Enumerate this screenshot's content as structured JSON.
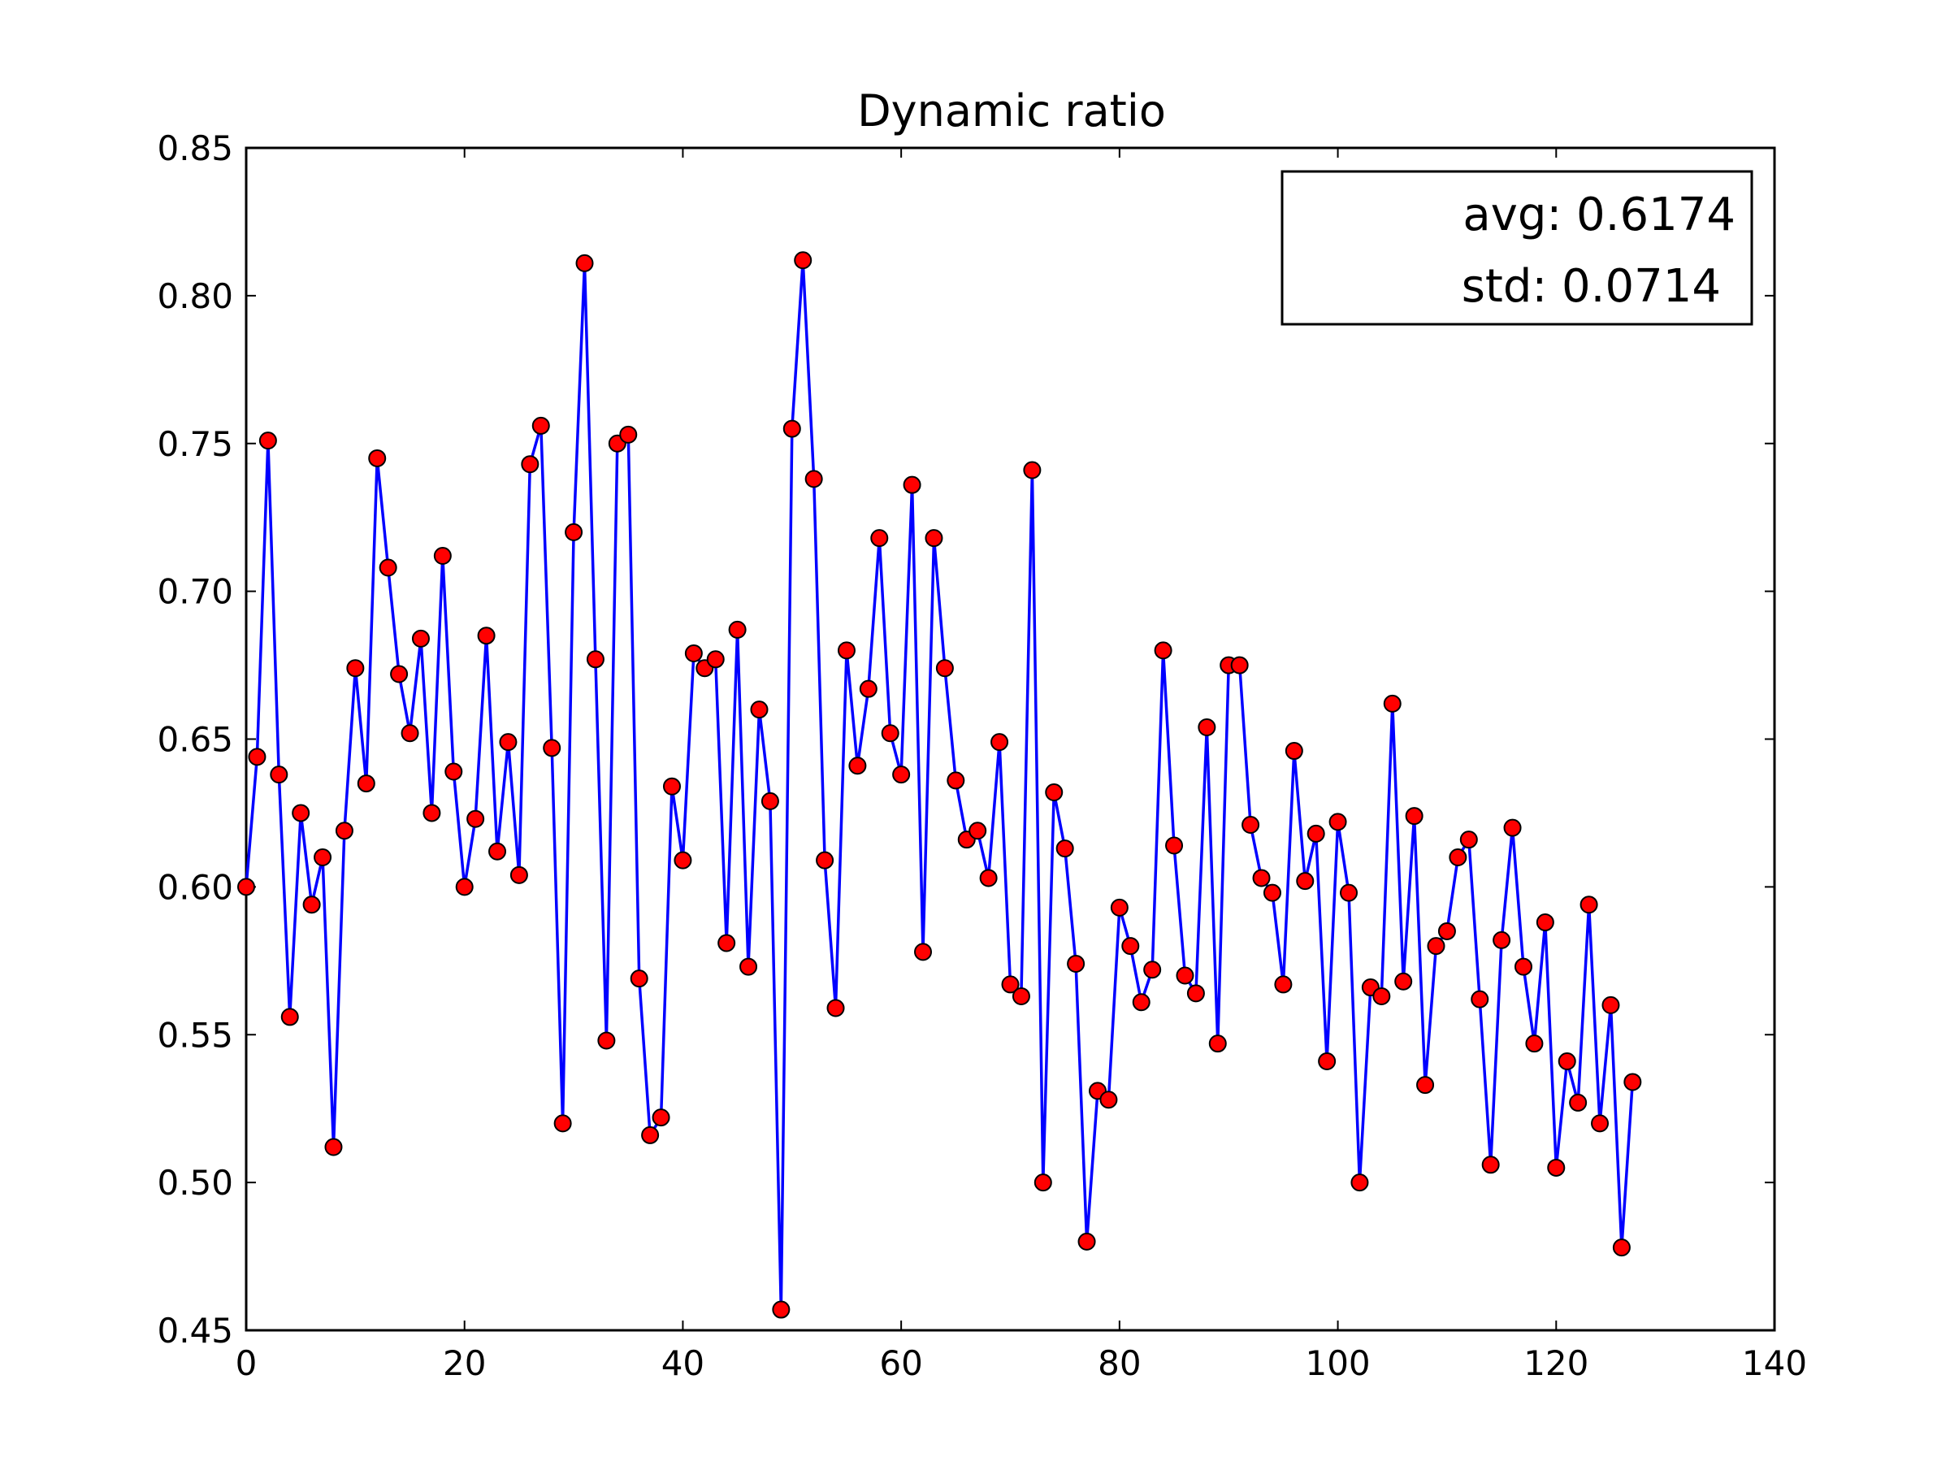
{
  "chart_data": {
    "type": "line",
    "title": "Dynamic ratio",
    "xlabel": "",
    "ylabel": "",
    "xlim": [
      0,
      140
    ],
    "ylim": [
      0.45,
      0.85
    ],
    "xticks": [
      "0",
      "20",
      "40",
      "60",
      "80",
      "100",
      "120",
      "140"
    ],
    "yticks": [
      "0.45",
      "0.50",
      "0.55",
      "0.60",
      "0.65",
      "0.70",
      "0.75",
      "0.80",
      "0.85"
    ],
    "grid": false,
    "legend": {
      "position": "top-right",
      "lines": [
        "avg: 0.6174",
        "std: 0.0714"
      ]
    },
    "colors": {
      "line": "#0000ff",
      "marker": "#ff0000",
      "marker_edge": "#000000"
    },
    "x": [
      0,
      1,
      2,
      3,
      4,
      5,
      6,
      7,
      8,
      9,
      10,
      11,
      12,
      13,
      14,
      15,
      16,
      17,
      18,
      19,
      20,
      21,
      22,
      23,
      24,
      25,
      26,
      27,
      28,
      29,
      30,
      31,
      32,
      33,
      34,
      35,
      36,
      37,
      38,
      39,
      40,
      41,
      42,
      43,
      44,
      45,
      46,
      47,
      48,
      49,
      50,
      51,
      52,
      53,
      54,
      55,
      56,
      57,
      58,
      59,
      60,
      61,
      62,
      63,
      64,
      65,
      66,
      67,
      68,
      69,
      70,
      71,
      72,
      73,
      74,
      75,
      76,
      77,
      78,
      79,
      80,
      81,
      82,
      83,
      84,
      85,
      86,
      87,
      88,
      89,
      90,
      91,
      92,
      93,
      94,
      95,
      96,
      97,
      98,
      99,
      100,
      101,
      102,
      103,
      104,
      105,
      106,
      107,
      108,
      109,
      110,
      111,
      112,
      113,
      114,
      115,
      116,
      117,
      118,
      119,
      120,
      121,
      122,
      123,
      124,
      125,
      126,
      127
    ],
    "y": [
      0.6,
      0.644,
      0.751,
      0.638,
      0.556,
      0.625,
      0.594,
      0.61,
      0.512,
      0.619,
      0.674,
      0.635,
      0.745,
      0.708,
      0.672,
      0.652,
      0.684,
      0.625,
      0.712,
      0.639,
      0.6,
      0.623,
      0.685,
      0.612,
      0.649,
      0.604,
      0.743,
      0.756,
      0.647,
      0.52,
      0.72,
      0.811,
      0.677,
      0.548,
      0.75,
      0.753,
      0.569,
      0.516,
      0.522,
      0.634,
      0.609,
      0.679,
      0.674,
      0.677,
      0.581,
      0.687,
      0.573,
      0.66,
      0.629,
      0.457,
      0.755,
      0.812,
      0.738,
      0.609,
      0.559,
      0.68,
      0.641,
      0.667,
      0.718,
      0.652,
      0.638,
      0.736,
      0.578,
      0.718,
      0.674,
      0.636,
      0.616,
      0.619,
      0.603,
      0.649,
      0.567,
      0.563,
      0.741,
      0.5,
      0.632,
      0.613,
      0.574,
      0.48,
      0.531,
      0.528,
      0.593,
      0.58,
      0.561,
      0.572,
      0.68,
      0.614,
      0.57,
      0.564,
      0.654,
      0.547,
      0.675,
      0.675,
      0.621,
      0.603,
      0.598,
      0.567,
      0.646,
      0.602,
      0.618,
      0.541,
      0.622,
      0.598,
      0.5,
      0.566,
      0.563,
      0.662,
      0.568,
      0.624,
      0.533,
      0.58,
      0.585,
      0.61,
      0.616,
      0.562,
      0.506,
      0.582,
      0.62,
      0.573,
      0.547,
      0.588,
      0.505,
      0.541,
      0.527,
      0.594,
      0.52,
      0.56,
      0.478,
      0.534
    ]
  }
}
